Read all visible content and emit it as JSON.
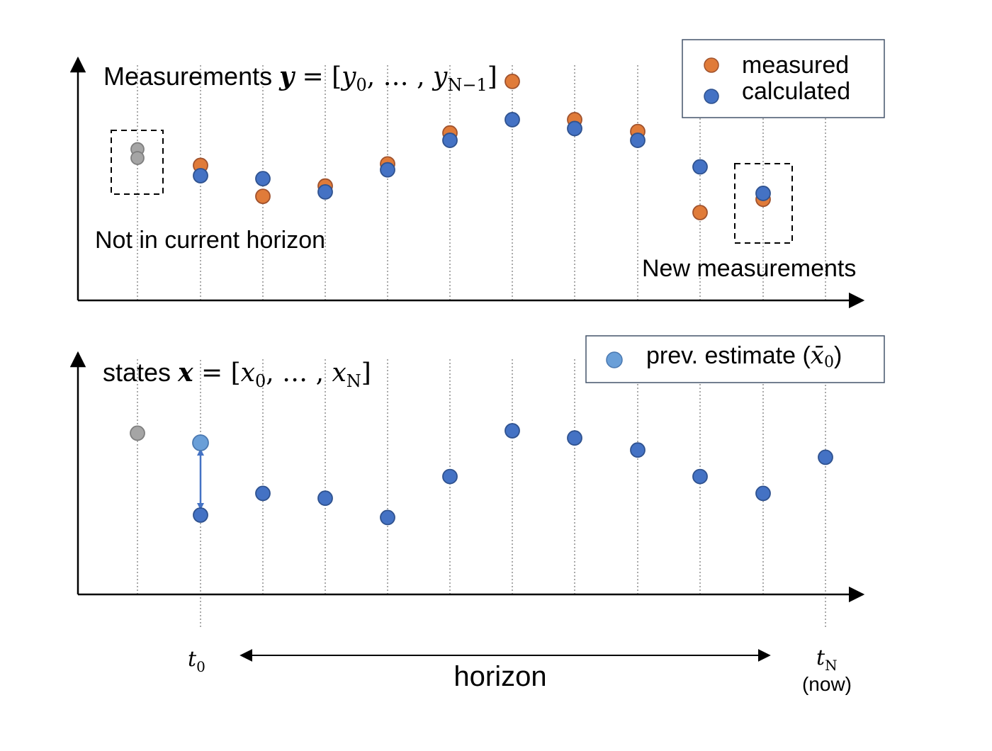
{
  "top_panel": {
    "title_prefix": "Measurements ",
    "title_var": "y",
    "title_eq": " = [",
    "title_y0": "y",
    "title_y0_sub": "0",
    "title_mid": ", … , ",
    "title_yN": "y",
    "title_yN_sub": "N−1",
    "title_close": "]",
    "left_note": "Not in current horizon",
    "right_note": "New measurements",
    "legend": {
      "measured_label": "measured",
      "calculated_label": "calculated"
    },
    "measured_values": [
      null,
      5.2,
      3.1,
      3.8,
      5.3,
      7.4,
      10.9,
      8.3,
      7.5,
      2.0,
      2.9,
      null
    ],
    "calculated_values": [
      null,
      4.5,
      4.3,
      3.4,
      4.9,
      6.9,
      8.3,
      7.7,
      6.9,
      5.1,
      3.3,
      null
    ],
    "old_values": [
      6.3,
      5.7
    ]
  },
  "bottom_panel": {
    "title_prefix": "states ",
    "title_var": "x",
    "title_eq": " = [",
    "title_x0": "x",
    "title_x0_sub": "0",
    "title_mid": ", … , ",
    "title_xN": "x",
    "title_xN_sub": "N",
    "title_close": "]",
    "legend": {
      "prev_label_prefix": "prev. estimate (",
      "prev_symbol": "x̄",
      "prev_sub": "0",
      "prev_label_suffix": ")"
    },
    "state_values": [
      null,
      3.0,
      3.9,
      3.7,
      2.9,
      4.6,
      6.5,
      6.2,
      5.7,
      4.6,
      3.9,
      5.4
    ],
    "old_value": 6.4,
    "prev_estimate_value": 6.0
  },
  "time_axis": {
    "t0_label": "t",
    "t0_sub": "0",
    "tN_label": "t",
    "tN_sub": "N",
    "now_label": "(now)",
    "horizon_label": "horizon"
  },
  "colors": {
    "measured": "#E07B39",
    "calculated": "#4472C4",
    "old": "#A5A5A5",
    "prev_estimate": "#6A9FD8",
    "axis": "#000000",
    "legend_border": "#44546A"
  }
}
